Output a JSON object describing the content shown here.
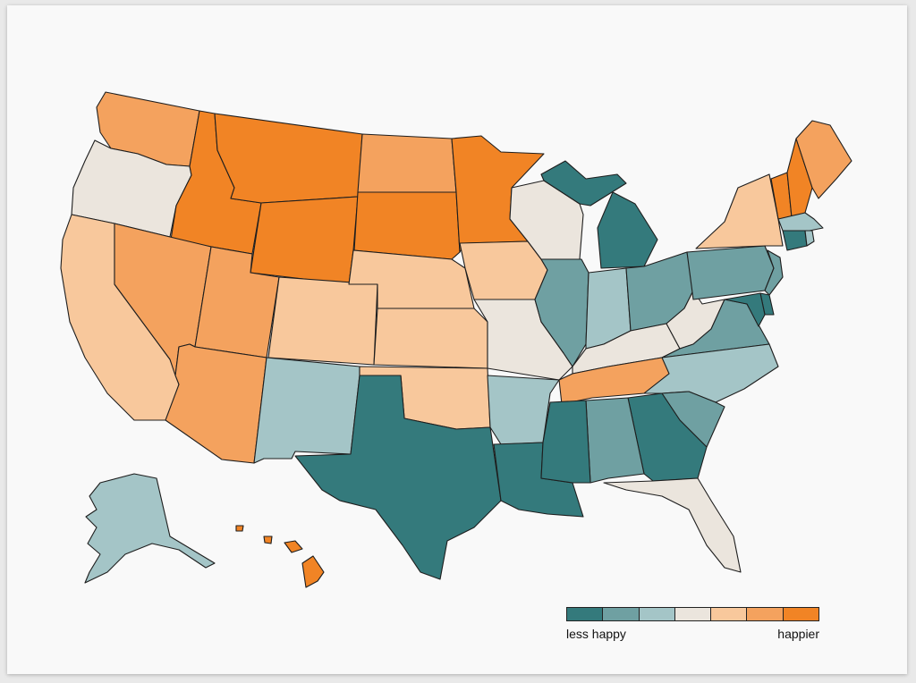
{
  "palette": {
    "c1": "#347a7c",
    "c2": "#6fa0a2",
    "c3": "#a4c5c7",
    "c4": "#ebe5dd",
    "c5": "#f8c89c",
    "c6": "#f4a25e",
    "c7": "#f18425"
  },
  "legend": {
    "low_label": "less happy",
    "high_label": "happier",
    "swatches": [
      "c1",
      "c2",
      "c3",
      "c4",
      "c5",
      "c6",
      "c7"
    ]
  },
  "states": {
    "WA": "c6",
    "OR": "c4",
    "CA": "c5",
    "ID": "c7",
    "NV": "c6",
    "MT": "c7",
    "WY": "c7",
    "UT": "c6",
    "AZ": "c6",
    "CO": "c5",
    "NM": "c3",
    "ND": "c6",
    "SD": "c7",
    "NE": "c5",
    "KS": "c5",
    "OK": "c5",
    "TX": "c1",
    "MN": "c7",
    "IA": "c5",
    "MO": "c4",
    "AR": "c3",
    "LA": "c1",
    "WI": "c4",
    "IL": "c2",
    "MI": "c1",
    "IN": "c3",
    "OH": "c2",
    "KY": "c4",
    "TN": "c6",
    "MS": "c1",
    "AL": "c2",
    "GA": "c1",
    "FL": "c4",
    "SC": "c2",
    "NC": "c3",
    "VA": "c2",
    "WV": "c4",
    "PA": "c2",
    "NY": "c5",
    "VT": "c7",
    "NH": "c7",
    "ME": "c6",
    "MA": "c3",
    "RI": "c3",
    "CT": "c1",
    "NJ": "c2",
    "DE": "c1",
    "MD": "c1",
    "AK": "c3",
    "HI": "c7"
  }
}
